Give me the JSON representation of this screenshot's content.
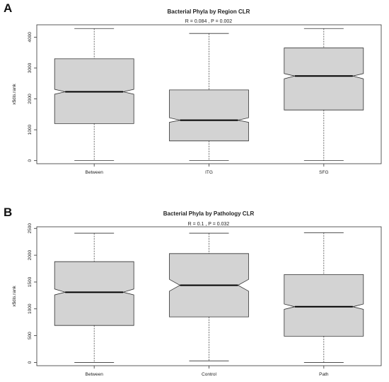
{
  "chart_data": [
    {
      "type": "boxplot",
      "panel": "A",
      "title": "Bacterial Phyla by Region CLR",
      "subtitle": "R =  0.084 ,  P =  0.002",
      "xlabel": "",
      "ylabel": "x$dis.rank",
      "ylim": [
        -100,
        4400
      ],
      "yticks": [
        0,
        1000,
        2000,
        3000,
        4000
      ],
      "notched": true,
      "categories": [
        "Between",
        "ITG",
        "SFG"
      ],
      "boxes": [
        {
          "name": "Between",
          "min": 0,
          "q1": 1200,
          "median": 2230,
          "q3": 3300,
          "max": 4280,
          "notch_low": 2150,
          "notch_high": 2310
        },
        {
          "name": "ITG",
          "min": 0,
          "q1": 640,
          "median": 1310,
          "q3": 2290,
          "max": 4120,
          "notch_low": 1240,
          "notch_high": 1390
        },
        {
          "name": "SFG",
          "min": 0,
          "q1": 1640,
          "median": 2740,
          "q3": 3650,
          "max": 4280,
          "notch_low": 2650,
          "notch_high": 2820
        }
      ]
    },
    {
      "type": "boxplot",
      "panel": "B",
      "title": "Bacterial Phyla by Pathology CLR",
      "subtitle": "R =  0.1 ,  P =  0.032",
      "xlabel": "",
      "ylabel": "x$dis.rank",
      "ylim": [
        -60,
        2530
      ],
      "yticks": [
        0,
        500,
        1000,
        1500,
        2000,
        2500
      ],
      "notched": true,
      "categories": [
        "Between",
        "Control",
        "Path"
      ],
      "boxes": [
        {
          "name": "Between",
          "min": 0,
          "q1": 690,
          "median": 1310,
          "q3": 1880,
          "max": 2410,
          "notch_low": 1260,
          "notch_high": 1370
        },
        {
          "name": "Control",
          "min": 30,
          "q1": 850,
          "median": 1440,
          "q3": 2030,
          "max": 2410,
          "notch_low": 1330,
          "notch_high": 1550
        },
        {
          "name": "Path",
          "min": 0,
          "q1": 490,
          "median": 1040,
          "q3": 1640,
          "max": 2420,
          "notch_low": 990,
          "notch_high": 1090
        }
      ]
    }
  ]
}
